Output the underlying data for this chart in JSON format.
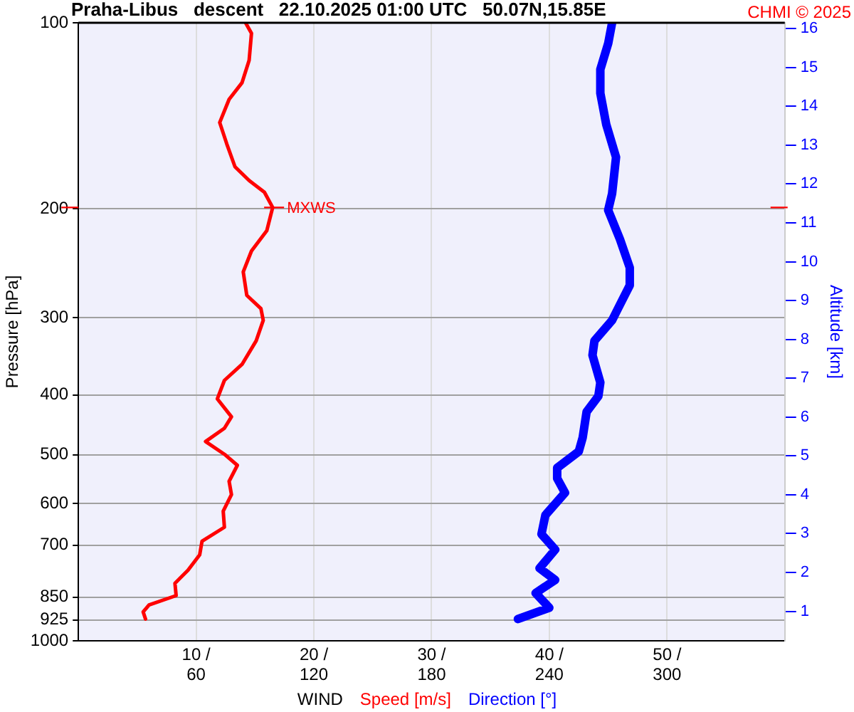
{
  "chart_data": {
    "type": "line",
    "title": "Praha-Libus   descent   22.10.2025 01:00 UTC   50.07N,15.85E",
    "xlabel": "WIND",
    "ylabel": "Pressure [hPa]",
    "y2label": "Altitude [km]",
    "annotations": [
      "CHMI © 2025",
      {
        "text": "MXWS",
        "x": 16.5,
        "y": 199
      }
    ],
    "log": "y",
    "grid": true,
    "legend": "bottom",
    "line_style": "solid",
    "xlim": [
      0,
      60
    ],
    "xticks": [
      {
        "value": 10,
        "label": "10 /"
      },
      {
        "value": 20,
        "label": "20 /"
      },
      {
        "value": 30,
        "label": "30 /"
      },
      {
        "value": 40,
        "label": "40 /"
      },
      {
        "value": 50,
        "label": "50 /"
      }
    ],
    "x2lim": [
      0,
      360
    ],
    "x2ticks": [
      60,
      120,
      180,
      240,
      300
    ],
    "ylim": [
      1000,
      100
    ],
    "yticks": [
      100,
      200,
      300,
      400,
      500,
      600,
      700,
      850,
      925,
      1000
    ],
    "y2lim": [
      0.24,
      16.15
    ],
    "y2ticks": [
      1,
      2,
      3,
      4,
      5,
      6,
      7,
      8,
      9,
      10,
      11,
      12,
      13,
      14,
      15,
      16
    ],
    "series": [
      {
        "name": "Speed [m/s]",
        "color": "#ff0000",
        "x": [
          14.2,
          14.7,
          14.5,
          13.9,
          12.8,
          12.0,
          12.6,
          13.3,
          14.5,
          15.8,
          16.5,
          16.0,
          14.7,
          14.0,
          14.3,
          15.5,
          15.7,
          15.1,
          13.9,
          12.4,
          11.8,
          13.0,
          12.4,
          10.8,
          12.4,
          13.5,
          12.8,
          13.0,
          12.3,
          12.4,
          10.5,
          10.3,
          9.3,
          8.2,
          8.3,
          6.0,
          5.5,
          5.7
        ],
        "values": [
          100,
          104,
          115,
          125,
          133,
          145,
          157,
          171,
          180,
          188,
          199,
          217,
          234,
          253,
          276,
          290,
          303,
          327,
          357,
          379,
          406,
          434,
          453,
          476,
          499,
          520,
          552,
          580,
          617,
          655,
          690,
          726,
          769,
          807,
          845,
          875,
          898,
          922
        ]
      },
      {
        "name": "Direction [°]",
        "color": "#0000ff",
        "axis": "x2",
        "x": [
          272,
          270,
          266,
          266,
          269,
          274,
          272,
          270,
          276,
          281,
          281,
          275,
          272,
          263,
          262,
          266,
          265,
          259,
          257,
          255,
          244,
          244,
          248,
          238,
          236,
          243,
          235,
          243,
          233,
          240,
          224
        ],
        "values": [
          100,
          108,
          119,
          130,
          146,
          165,
          189,
          201,
          224,
          249,
          266,
          290,
          303,
          327,
          345,
          382,
          402,
          426,
          469,
          494,
          525,
          546,
          576,
          626,
          672,
          712,
          763,
          797,
          837,
          884,
          922
        ]
      }
    ]
  }
}
